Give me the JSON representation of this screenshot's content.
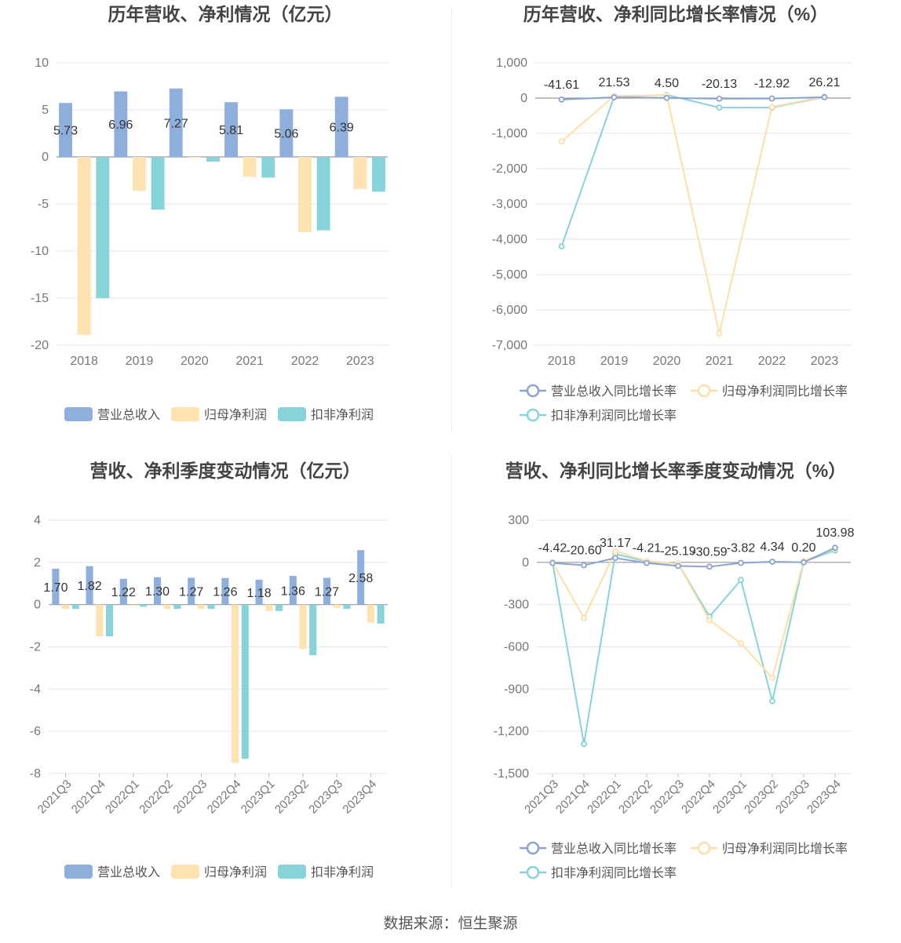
{
  "footer": {
    "source": "数据来源：恒生聚源"
  },
  "colors": {
    "revenue": "#8eaedb",
    "net_profit": "#fee2b0",
    "deducted": "#86d4d9",
    "revenue_line": "#8aa3d4",
    "net_line": "#fde0a8",
    "deducted_line": "#86d4d9"
  },
  "chart_data": [
    {
      "id": "annual-amount",
      "type": "bar",
      "title": "历年营收、净利情况（亿元）",
      "categories": [
        "2018",
        "2019",
        "2020",
        "2021",
        "2022",
        "2023"
      ],
      "series": [
        {
          "name": "营业总收入",
          "values": [
            5.73,
            6.96,
            7.27,
            5.81,
            5.06,
            6.39
          ],
          "labels": [
            "5.73",
            "6.96",
            "7.27",
            "5.81",
            "5.06",
            "6.39"
          ]
        },
        {
          "name": "归母净利润",
          "values": [
            -18.9,
            -3.6,
            -0.1,
            -2.1,
            -8.0,
            -3.4
          ]
        },
        {
          "name": "扣非净利润",
          "values": [
            -15.0,
            -5.6,
            -0.5,
            -2.2,
            -7.8,
            -3.7
          ]
        }
      ],
      "ylim": [
        -20,
        10
      ],
      "yticks": [
        "10",
        "5",
        "0",
        "-5",
        "-10",
        "-15",
        "-20"
      ],
      "ytick_values": [
        10,
        5,
        0,
        -5,
        -10,
        -15,
        -20
      ],
      "grid": true,
      "legend": "bottom"
    },
    {
      "id": "annual-growth",
      "type": "line",
      "title": "历年营收、净利同比增长率情况（%）",
      "categories": [
        "2018",
        "2019",
        "2020",
        "2021",
        "2022",
        "2023"
      ],
      "series": [
        {
          "name": "营业总收入同比增长率",
          "values": [
            -41.61,
            21.53,
            4.5,
            -20.13,
            -12.92,
            26.21
          ],
          "labels": [
            "-41.61",
            "21.53",
            "4.50",
            "-20.13",
            "-12.92",
            "26.21"
          ]
        },
        {
          "name": "归母净利润同比增长率",
          "values": [
            -1230,
            60,
            80,
            -6670,
            -250,
            40
          ]
        },
        {
          "name": "扣非净利润同比增长率",
          "values": [
            -4200,
            40,
            90,
            -270,
            -270,
            30
          ]
        }
      ],
      "ylim": [
        -7000,
        1000
      ],
      "yticks": [
        "1,000",
        "0",
        "-1,000",
        "-2,000",
        "-3,000",
        "-4,000",
        "-5,000",
        "-6,000",
        "-7,000"
      ],
      "ytick_values": [
        1000,
        0,
        -1000,
        -2000,
        -3000,
        -4000,
        -5000,
        -6000,
        -7000
      ],
      "grid": true,
      "legend": "bottom"
    },
    {
      "id": "quarterly-amount",
      "type": "bar",
      "title": "营收、净利季度变动情况（亿元）",
      "categories": [
        "2021Q3",
        "2021Q4",
        "2022Q1",
        "2022Q2",
        "2022Q3",
        "2022Q4",
        "2023Q1",
        "2023Q2",
        "2023Q3",
        "2023Q4"
      ],
      "series": [
        {
          "name": "营业总收入",
          "values": [
            1.7,
            1.82,
            1.22,
            1.3,
            1.27,
            1.26,
            1.18,
            1.36,
            1.27,
            2.58
          ],
          "labels": [
            "1.70",
            "1.82",
            "1.22",
            "1.30",
            "1.27",
            "1.26",
            "1.18",
            "1.36",
            "1.27",
            "2.58"
          ]
        },
        {
          "name": "归母净利润",
          "values": [
            -0.2,
            -1.5,
            -0.05,
            -0.2,
            -0.2,
            -7.5,
            -0.3,
            -2.1,
            -0.15,
            -0.85
          ]
        },
        {
          "name": "扣非净利润",
          "values": [
            -0.2,
            -1.5,
            -0.1,
            -0.2,
            -0.2,
            -7.3,
            -0.3,
            -2.4,
            -0.2,
            -0.9
          ]
        }
      ],
      "ylim": [
        -8,
        4
      ],
      "yticks": [
        "4",
        "2",
        "0",
        "-2",
        "-4",
        "-6",
        "-8"
      ],
      "ytick_values": [
        4,
        2,
        0,
        -2,
        -4,
        -6,
        -8
      ],
      "grid": true,
      "legend": "bottom"
    },
    {
      "id": "quarterly-growth",
      "type": "line",
      "title": "营收、净利同比增长率季度变动情况（%）",
      "categories": [
        "2021Q3",
        "2021Q4",
        "2022Q1",
        "2022Q2",
        "2022Q3",
        "2022Q4",
        "2023Q1",
        "2023Q2",
        "2023Q3",
        "2023Q4"
      ],
      "series": [
        {
          "name": "营业总收入同比增长率",
          "values": [
            -4.42,
            -20.6,
            31.17,
            -4.21,
            -25.19,
            -30.59,
            -3.82,
            4.34,
            0.2,
            103.98
          ],
          "labels": [
            "-4.42",
            "-20.60",
            "31.17",
            "-4.21",
            "-25.19",
            "-30.59",
            "-3.82",
            "4.34",
            "0.20",
            "103.98"
          ]
        },
        {
          "name": "归母净利润同比增长率",
          "values": [
            0,
            -395,
            80,
            10,
            -10,
            -410,
            -575,
            -820,
            10,
            95
          ]
        },
        {
          "name": "扣非净利润同比增长率",
          "values": [
            0,
            -1290,
            60,
            5,
            -10,
            -385,
            -125,
            -985,
            5,
            85
          ]
        }
      ],
      "ylim": [
        -1500,
        300
      ],
      "yticks": [
        "300",
        "0",
        "-300",
        "-600",
        "-900",
        "-1,200",
        "-1,500"
      ],
      "ytick_values": [
        300,
        0,
        -300,
        -600,
        -900,
        -1200,
        -1500
      ],
      "grid": true,
      "legend": "bottom"
    }
  ]
}
